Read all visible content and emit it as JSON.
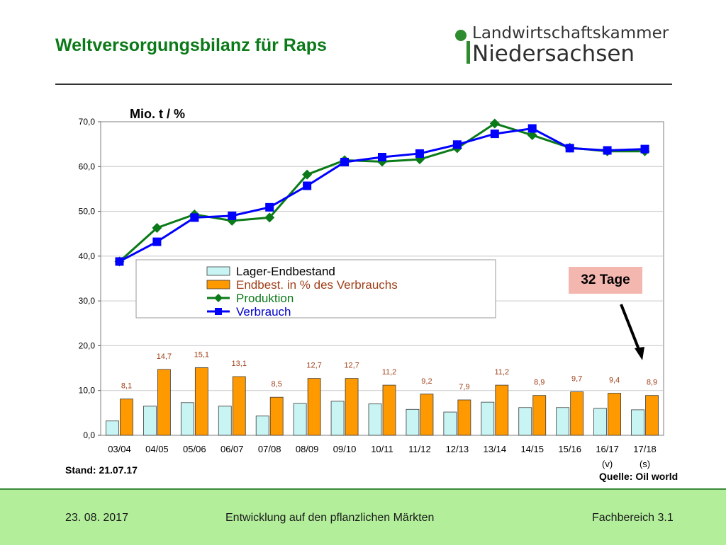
{
  "slide": {
    "title": "Weltversorgungsbilanz für Raps",
    "stand": "Stand: 21.07.17",
    "source": "Quelle: Oil world",
    "annotation": "32 Tage"
  },
  "logo": {
    "line1": "Landwirtschaftskammer",
    "line2": "Niedersachsen"
  },
  "footer": {
    "date": "23. 08. 2017",
    "topic": "Entwicklung auf den pflanzlichen Märkten",
    "department": "Fachbereich 3.1"
  },
  "colors": {
    "title_green": "#0b7a18",
    "stock_bar": "#c8f4f4",
    "pct_bar": "#ff9900",
    "production_line": "#0b7a18",
    "consumption_line": "#0000ff",
    "pct_label": "#a0401a",
    "footer_bg": "#b3ef9b",
    "badge_bg": "#f4b7b0"
  },
  "chart_data": {
    "type": "bar",
    "unit_label": "Mio. t / %",
    "categories": [
      "03/04",
      "04/05",
      "05/06",
      "06/07",
      "07/08",
      "08/09",
      "09/10",
      "10/11",
      "11/12",
      "12/13",
      "13/14",
      "14/15",
      "15/16",
      "16/17",
      "17/18"
    ],
    "category_sublabels": [
      "",
      "",
      "",
      "",
      "",
      "",
      "",
      "",
      "",
      "",
      "",
      "",
      "",
      "(v)",
      "(s)"
    ],
    "ylim": [
      0,
      70
    ],
    "yticks": [
      "0,0",
      "10,0",
      "20,0",
      "30,0",
      "40,0",
      "50,0",
      "60,0",
      "70,0"
    ],
    "ytick_values": [
      0,
      10,
      20,
      30,
      40,
      50,
      60,
      70
    ],
    "grid": true,
    "legend_position": "center-left",
    "series": [
      {
        "name": "Lager-Endbestand",
        "type": "bar",
        "values": [
          3.2,
          6.5,
          7.3,
          6.5,
          4.3,
          7.1,
          7.6,
          7.0,
          5.8,
          5.2,
          7.4,
          6.2,
          6.2,
          6.0,
          5.7
        ]
      },
      {
        "name": "Endbest. in % des Verbrauchs",
        "type": "bar",
        "values": [
          8.1,
          14.7,
          15.1,
          13.1,
          8.5,
          12.7,
          12.7,
          11.2,
          9.2,
          7.9,
          11.2,
          8.9,
          9.7,
          9.4,
          8.9
        ],
        "labels": [
          "8,1",
          "14,7",
          "15,1",
          "13,1",
          "8,5",
          "12,7",
          "12,7",
          "11,2",
          "9,2",
          "7,9",
          "11,2",
          "8,9",
          "9,7",
          "9,4",
          "8,9"
        ]
      },
      {
        "name": "Produktion",
        "type": "line",
        "values": [
          38.8,
          46.3,
          49.3,
          47.9,
          48.6,
          58.2,
          61.4,
          61.1,
          61.6,
          64.1,
          69.6,
          67.0,
          64.2,
          63.4,
          63.4
        ]
      },
      {
        "name": "Verbrauch",
        "type": "line",
        "values": [
          38.8,
          43.2,
          48.6,
          49.0,
          50.9,
          55.7,
          61.0,
          62.1,
          62.9,
          64.9,
          67.3,
          68.5,
          64.1,
          63.6,
          63.9
        ]
      }
    ]
  }
}
